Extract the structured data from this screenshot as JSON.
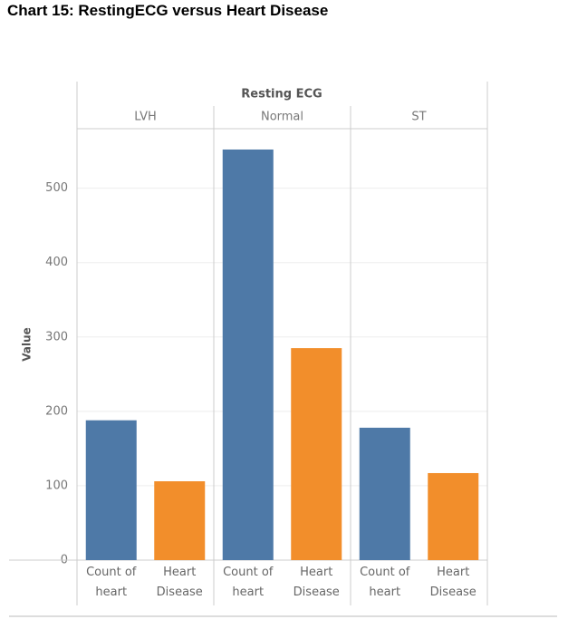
{
  "chart_data": {
    "type": "bar",
    "title": "Chart 15: RestingECG versus Heart Disease",
    "header": "Resting ECG",
    "ylabel": "Value",
    "groups": [
      "LVH",
      "Normal",
      "ST"
    ],
    "series": [
      {
        "name": "Count of heart",
        "color": "#4e79a7",
        "values": [
          188,
          552,
          178
        ]
      },
      {
        "name": "Heart Disease",
        "color": "#f28e2b",
        "values": [
          106,
          285,
          117
        ]
      }
    ],
    "ylim": [
      0,
      580
    ],
    "yticks": [
      0,
      100,
      200,
      300,
      400,
      500
    ],
    "grid": true
  }
}
